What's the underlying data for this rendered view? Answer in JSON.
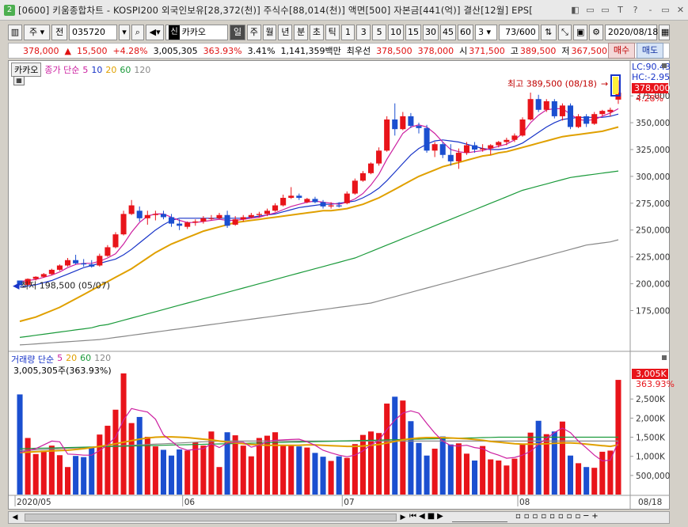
{
  "window": {
    "title": "[0600] 키움종합차트 - KOSPI200 외국인보유[28,372(천)] 주식수[88,014(천)] 액면[500] 자본금[441(억)] 결산[12월] EPS[",
    "app_badge": "2",
    "buttons": [
      "◧",
      "▭",
      "▭",
      "T",
      "?",
      "‐",
      "▭",
      "✕"
    ]
  },
  "toolbar": {
    "period_label": "주",
    "type_label": "전",
    "code": "035720",
    "name_badge": "신",
    "name": "카카오",
    "period_tabs": [
      "일",
      "주",
      "월",
      "년",
      "분",
      "초",
      "틱"
    ],
    "active_period": "일",
    "numbers": [
      "1",
      "3",
      "5",
      "10",
      "15",
      "30",
      "45",
      "60"
    ],
    "count_sel": "3",
    "page_count": "73/600",
    "date": "2020/08/18"
  },
  "quote": {
    "price": "378,000",
    "arrow": "▲",
    "change": "15,500",
    "pct": "+4.28%",
    "volume": "3,005,305",
    "vol_ratio": "363.93%",
    "turnover": "3.41%",
    "amount": "1,141,359백만",
    "priority_label": "최우선",
    "ask": "378,500",
    "bid": "378,000",
    "open_label": "시",
    "open": "371,500",
    "high_label": "고",
    "high": "389,500",
    "low_label": "저",
    "low": "367,500",
    "buy": "매수",
    "sell": "매도"
  },
  "price_legend": {
    "stock": "카카오",
    "label": "종가 단순",
    "ma": [
      "5",
      "10",
      "20",
      "60",
      "120"
    ],
    "ma_colors": [
      "#cc1fa0",
      "#1834c8",
      "#e0a000",
      "#1a9a3a",
      "#888888"
    ]
  },
  "volume_legend": {
    "label": "거래량 단순",
    "ma": [
      "5",
      "20",
      "60",
      "120"
    ],
    "sub": "3,005,305주(363.93%)"
  },
  "annotations": {
    "high": "최고 389,500 (08/18)",
    "low": "최저 198,500 (05/07)",
    "lc": "LC:90.43",
    "hc": "HC:-2.95",
    "price_tag": "378,000",
    "pct_tag": "4.28%",
    "vol_tag": "3,005K",
    "vol_pct_tag": "363.93%"
  },
  "x_labels": [
    "2020/05",
    "06",
    "07",
    "08",
    "08/18"
  ],
  "chart_data": {
    "type": "candlestick",
    "price_axis": [
      "375,000",
      "350,000",
      "325,000",
      "300,000",
      "275,000",
      "250,000",
      "225,000",
      "200,000",
      "175,000"
    ],
    "volume_axis": [
      "2,500K",
      "2,000K",
      "1,500K",
      "1,000K",
      "500,000"
    ],
    "price_range": [
      140000,
      395000
    ],
    "volume_range": [
      0,
      3250000
    ],
    "candles": [
      [
        203000,
        203000,
        198500,
        198500
      ],
      [
        199000,
        205000,
        198500,
        204500
      ],
      [
        204500,
        207000,
        203000,
        206500
      ],
      [
        206500,
        210000,
        205500,
        209000
      ],
      [
        209000,
        214000,
        208000,
        213000
      ],
      [
        213000,
        218000,
        212000,
        217000
      ],
      [
        217000,
        224000,
        216000,
        222000
      ],
      [
        222000,
        227000,
        218000,
        219000
      ],
      [
        219000,
        223000,
        216000,
        218000
      ],
      [
        218000,
        222000,
        215000,
        216000
      ],
      [
        217000,
        228000,
        216000,
        226000
      ],
      [
        226000,
        236000,
        225000,
        234000
      ],
      [
        234000,
        248000,
        233000,
        246000
      ],
      [
        246000,
        268000,
        245000,
        265000
      ],
      [
        265000,
        278000,
        264000,
        273000
      ],
      [
        268000,
        272000,
        258000,
        261000
      ],
      [
        261000,
        268000,
        255000,
        264000
      ],
      [
        264000,
        268000,
        259000,
        265000
      ],
      [
        265000,
        268000,
        260000,
        262000
      ],
      [
        262000,
        265000,
        253000,
        256000
      ],
      [
        256000,
        260000,
        250000,
        254000
      ],
      [
        253000,
        258000,
        251000,
        257000
      ],
      [
        257000,
        260000,
        254000,
        258000
      ],
      [
        258000,
        263000,
        256000,
        261000
      ],
      [
        261000,
        264000,
        259000,
        261000
      ],
      [
        261000,
        266000,
        260000,
        264000
      ],
      [
        264000,
        268000,
        252000,
        254000
      ],
      [
        255000,
        263000,
        254000,
        260000
      ],
      [
        260000,
        264000,
        258000,
        262000
      ],
      [
        262000,
        266000,
        261000,
        264000
      ],
      [
        264000,
        267000,
        262000,
        265000
      ],
      [
        265000,
        270000,
        263000,
        268000
      ],
      [
        268000,
        275000,
        267000,
        273000
      ],
      [
        273000,
        283000,
        272000,
        280000
      ],
      [
        280000,
        290000,
        279000,
        282000
      ],
      [
        282000,
        284000,
        278000,
        280000
      ],
      [
        276000,
        280000,
        275000,
        279000
      ],
      [
        279000,
        281000,
        275000,
        276000
      ],
      [
        276000,
        278000,
        270000,
        272000
      ],
      [
        272000,
        276000,
        270000,
        273000
      ],
      [
        273000,
        276000,
        271000,
        272000
      ],
      [
        275000,
        286000,
        274000,
        284000
      ],
      [
        284000,
        298000,
        283000,
        296000
      ],
      [
        296000,
        305000,
        295000,
        303000
      ],
      [
        303000,
        313000,
        302000,
        312000
      ],
      [
        312000,
        327000,
        310000,
        324000
      ],
      [
        324000,
        356000,
        323000,
        353000
      ],
      [
        353000,
        368000,
        338000,
        344000
      ],
      [
        344000,
        360000,
        343000,
        356000
      ],
      [
        356000,
        359000,
        345000,
        347000
      ],
      [
        347000,
        350000,
        340000,
        345000
      ],
      [
        345000,
        348000,
        322000,
        324000
      ],
      [
        324000,
        332000,
        318000,
        330000
      ],
      [
        330000,
        332000,
        317000,
        320000
      ],
      [
        320000,
        330000,
        310000,
        314000
      ],
      [
        314000,
        326000,
        307000,
        322000
      ],
      [
        322000,
        332000,
        320000,
        329000
      ],
      [
        329000,
        332000,
        322000,
        325000
      ],
      [
        325000,
        330000,
        323000,
        326000
      ],
      [
        326000,
        330000,
        320000,
        329000
      ],
      [
        329000,
        333000,
        327000,
        332000
      ],
      [
        332000,
        336000,
        329000,
        334000
      ],
      [
        334000,
        340000,
        332000,
        338000
      ],
      [
        338000,
        355000,
        337000,
        353000
      ],
      [
        353000,
        378000,
        352000,
        372000
      ],
      [
        372000,
        376000,
        360000,
        362000
      ],
      [
        362000,
        372000,
        360000,
        370000
      ],
      [
        370000,
        372000,
        354000,
        356000
      ],
      [
        356000,
        368000,
        352000,
        366000
      ],
      [
        366000,
        368000,
        344000,
        346000
      ],
      [
        346000,
        358000,
        345000,
        356000
      ],
      [
        356000,
        358000,
        346000,
        349000
      ],
      [
        349000,
        360000,
        348000,
        358000
      ],
      [
        358000,
        362000,
        356000,
        361000
      ],
      [
        360000,
        364000,
        356000,
        362000
      ],
      [
        371500,
        389500,
        367500,
        378000
      ]
    ],
    "volumes": [
      2620000,
      1480000,
      1060000,
      1150000,
      1280000,
      1030000,
      720000,
      1010000,
      980000,
      1230000,
      1570000,
      1800000,
      2220000,
      3170000,
      1870000,
      2030000,
      1510000,
      1260000,
      1170000,
      1020000,
      1180000,
      1150000,
      1370000,
      1280000,
      1650000,
      720000,
      1630000,
      1550000,
      1280000,
      1000000,
      1480000,
      1540000,
      1630000,
      1280000,
      1280000,
      1260000,
      1230000,
      1090000,
      990000,
      880000,
      1000000,
      960000,
      1320000,
      1560000,
      1650000,
      1610000,
      2380000,
      2560000,
      2460000,
      1920000,
      1350000,
      1020000,
      1200000,
      1520000,
      1310000,
      1340000,
      1070000,
      890000,
      1270000,
      920000,
      890000,
      760000,
      940000,
      1310000,
      1620000,
      1930000,
      1580000,
      1650000,
      1910000,
      1020000,
      820000,
      720000,
      700000,
      1120000,
      1150000,
      3000000
    ],
    "ma5": [
      202000,
      203000,
      204000,
      206000,
      208000,
      211000,
      215000,
      218000,
      219000,
      219000,
      221000,
      224000,
      228000,
      237000,
      248000,
      257000,
      263000,
      265000,
      265000,
      262000,
      259000,
      257000,
      257000,
      258000,
      259000,
      260000,
      259000,
      259000,
      260000,
      261000,
      262000,
      264000,
      266000,
      269000,
      272000,
      274000,
      276000,
      277000,
      276000,
      275000,
      274000,
      276000,
      279000,
      284000,
      292000,
      302000,
      316000,
      328000,
      340000,
      346000,
      348000,
      346000,
      340000,
      332000,
      325000,
      323000,
      322000,
      323000,
      324000,
      326000,
      328000,
      330000,
      334000,
      340000,
      350000,
      357000,
      362000,
      363000,
      363000,
      358000,
      353000,
      352000,
      353000,
      356000,
      359000,
      363000
    ],
    "ma10": [
      197000,
      198000,
      199000,
      201000,
      203000,
      206000,
      209000,
      212000,
      215000,
      217000,
      219000,
      221000,
      223000,
      227000,
      232000,
      238000,
      244000,
      250000,
      255000,
      259000,
      261000,
      261000,
      261000,
      261000,
      261000,
      261000,
      261000,
      261000,
      261000,
      262000,
      263000,
      264000,
      265000,
      267000,
      269000,
      271000,
      272000,
      273000,
      274000,
      274000,
      275000,
      276000,
      277000,
      280000,
      284000,
      289000,
      296000,
      304000,
      312000,
      320000,
      326000,
      330000,
      333000,
      334000,
      333000,
      332000,
      330000,
      328000,
      326000,
      325000,
      325000,
      326000,
      328000,
      331000,
      336000,
      341000,
      346000,
      350000,
      353000,
      354000,
      355000,
      355000,
      355000,
      355000,
      356000,
      358000
    ],
    "ma20": [
      165000,
      167000,
      169000,
      172000,
      175000,
      178000,
      182000,
      186000,
      190000,
      194000,
      198000,
      202000,
      206000,
      210000,
      214000,
      219000,
      224000,
      229000,
      233000,
      237000,
      240000,
      243000,
      246000,
      249000,
      251000,
      253000,
      255000,
      257000,
      258000,
      259000,
      260000,
      261000,
      262000,
      263000,
      264000,
      265000,
      266000,
      267000,
      268000,
      268000,
      269000,
      270000,
      272000,
      274000,
      277000,
      280000,
      284000,
      288000,
      292000,
      296000,
      300000,
      303000,
      306000,
      309000,
      311000,
      313000,
      315000,
      317000,
      319000,
      320000,
      322000,
      323000,
      325000,
      327000,
      329000,
      331000,
      333000,
      335000,
      337000,
      338000,
      339000,
      340000,
      341000,
      342000,
      344000,
      346000
    ],
    "ma60": [
      150000,
      151000,
      152000,
      153000,
      154000,
      155000,
      156000,
      157000,
      158000,
      159000,
      161000,
      162000,
      164000,
      166000,
      168000,
      170000,
      172000,
      174000,
      176000,
      178000,
      180000,
      182000,
      184000,
      186000,
      188000,
      190000,
      192000,
      194000,
      196000,
      198000,
      200000,
      202000,
      204000,
      206000,
      208000,
      210000,
      212000,
      214000,
      216000,
      218000,
      220000,
      222000,
      224000,
      227000,
      230000,
      233000,
      236000,
      239000,
      242000,
      245000,
      248000,
      251000,
      254000,
      257000,
      260000,
      263000,
      266000,
      269000,
      272000,
      275000,
      278000,
      281000,
      284000,
      287000,
      289000,
      291000,
      293000,
      295000,
      297000,
      299000,
      300000,
      301000,
      302000,
      303000,
      304000,
      305000
    ],
    "ma120": [
      143000,
      143500,
      144000,
      144500,
      145000,
      145500,
      146000,
      146500,
      147000,
      147500,
      148000,
      149000,
      150000,
      151000,
      152000,
      153000,
      154000,
      155000,
      156000,
      157000,
      158000,
      159000,
      160000,
      161000,
      162000,
      163000,
      164000,
      165000,
      166000,
      167000,
      168000,
      169000,
      170000,
      171000,
      172000,
      173000,
      174000,
      175000,
      176000,
      177000,
      178000,
      179000,
      180000,
      181000,
      182000,
      184000,
      186000,
      188000,
      190000,
      192000,
      194000,
      196000,
      198000,
      200000,
      202000,
      204000,
      206000,
      208000,
      210000,
      212000,
      214000,
      216000,
      218000,
      220000,
      222000,
      224000,
      226000,
      228000,
      230000,
      232000,
      234000,
      236000,
      237000,
      238000,
      239000,
      241000
    ],
    "vma5": [
      1100000,
      1150000,
      1200000,
      1300000,
      1400000,
      1380000,
      1060000,
      1050000,
      1030000,
      1030000,
      1150000,
      1300000,
      1500000,
      1950000,
      2250000,
      2200000,
      2160000,
      1970000,
      1560000,
      1400000,
      1230000,
      1160000,
      1180000,
      1200000,
      1330000,
      1230000,
      1350000,
      1370000,
      1370000,
      1240000,
      1290000,
      1390000,
      1420000,
      1430000,
      1440000,
      1450000,
      1380000,
      1290000,
      1160000,
      1090000,
      1030000,
      990000,
      1030000,
      1140000,
      1300000,
      1420000,
      1700000,
      1950000,
      2130000,
      2190000,
      2130000,
      1860000,
      1610000,
      1400000,
      1280000,
      1270000,
      1290000,
      1230000,
      1200000,
      1100000,
      1030000,
      950000,
      970000,
      1030000,
      1130000,
      1310000,
      1470000,
      1620000,
      1740000,
      1620000,
      1400000,
      1220000,
      1030000,
      880000,
      900000,
      1380000
    ],
    "vma20": [
      1100000,
      1110000,
      1120000,
      1130000,
      1140000,
      1150000,
      1160000,
      1180000,
      1200000,
      1230000,
      1260000,
      1290000,
      1330000,
      1370000,
      1410000,
      1450000,
      1480000,
      1500000,
      1510000,
      1510000,
      1500000,
      1490000,
      1470000,
      1450000,
      1430000,
      1400000,
      1370000,
      1350000,
      1330000,
      1310000,
      1300000,
      1290000,
      1290000,
      1290000,
      1290000,
      1290000,
      1300000,
      1300000,
      1290000,
      1280000,
      1270000,
      1260000,
      1260000,
      1270000,
      1290000,
      1310000,
      1350000,
      1390000,
      1430000,
      1460000,
      1480000,
      1490000,
      1490000,
      1490000,
      1480000,
      1470000,
      1460000,
      1440000,
      1420000,
      1390000,
      1370000,
      1350000,
      1330000,
      1320000,
      1320000,
      1320000,
      1330000,
      1340000,
      1350000,
      1350000,
      1340000,
      1320000,
      1300000,
      1280000,
      1260000,
      1300000
    ],
    "vma60": [
      1200000,
      1205000,
      1210000,
      1215000,
      1220000,
      1225000,
      1230000,
      1235000,
      1240000,
      1245000,
      1250000,
      1255000,
      1260000,
      1265000,
      1270000,
      1275000,
      1280000,
      1285000,
      1290000,
      1295000,
      1300000,
      1305000,
      1310000,
      1315000,
      1320000,
      1325000,
      1330000,
      1335000,
      1340000,
      1345000,
      1350000,
      1355000,
      1360000,
      1365000,
      1370000,
      1375000,
      1380000,
      1385000,
      1390000,
      1395000,
      1400000,
      1405000,
      1410000,
      1415000,
      1420000,
      1425000,
      1430000,
      1435000,
      1440000,
      1445000,
      1450000,
      1455000,
      1460000,
      1465000,
      1470000,
      1475000,
      1480000,
      1485000,
      1490000,
      1495000,
      1500000,
      1500000,
      1500000,
      1500000,
      1500000,
      1500000,
      1500000,
      1500000,
      1500000,
      1500000,
      1500000,
      1500000,
      1500000,
      1500000,
      1500000,
      1500000
    ],
    "vma120": [
      1150000,
      1160000,
      1170000,
      1180000,
      1190000,
      1200000,
      1210000,
      1220000,
      1230000,
      1240000,
      1250000,
      1260000,
      1270000,
      1280000,
      1290000,
      1300000,
      1310000,
      1320000,
      1330000,
      1340000,
      1350000,
      1360000,
      1370000,
      1380000,
      1390000,
      1400000,
      1400000,
      1400000,
      1400000,
      1400000,
      1400000,
      1400000,
      1400000,
      1400000,
      1400000,
      1400000,
      1400000,
      1400000,
      1400000,
      1400000,
      1400000,
      1400000,
      1400000,
      1400000,
      1400000,
      1400000,
      1400000,
      1400000,
      1400000,
      1400000,
      1400000,
      1400000,
      1400000,
      1400000,
      1400000,
      1400000,
      1400000,
      1400000,
      1400000,
      1400000,
      1400000,
      1400000,
      1400000,
      1400000,
      1400000,
      1400000,
      1400000,
      1400000,
      1400000,
      1400000,
      1400000,
      1400000,
      1400000,
      1400000,
      1400000,
      1400000
    ]
  }
}
